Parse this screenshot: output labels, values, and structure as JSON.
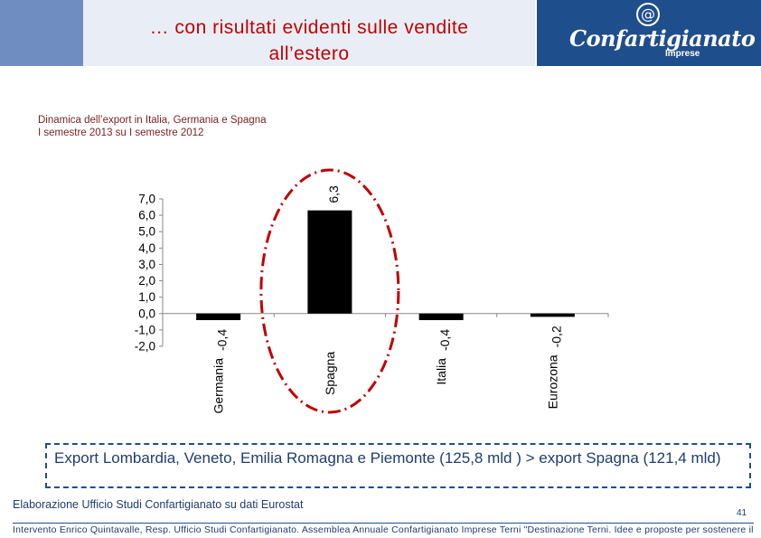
{
  "header": {
    "title_line1": "… con risultati evidenti sulle vendite",
    "title_line2": "all’estero"
  },
  "logo": {
    "at_symbol": "@",
    "name": "Confartigianato",
    "sub": "Imprese"
  },
  "subtitle": {
    "line1": "Dinamica dell’export in Italia, Germania e Spagna",
    "line2": "I semestre 2013 su I semestre 2012"
  },
  "chart_data": {
    "type": "bar",
    "categories": [
      "Germania",
      "Spagna",
      "Italia",
      "Eurozona"
    ],
    "values": [
      -0.4,
      6.3,
      -0.4,
      -0.2
    ],
    "value_labels": [
      "-0,4",
      "6,3",
      "-0,4",
      "-0,2"
    ],
    "ylim": [
      -2.0,
      7.0
    ],
    "yticks": [
      7.0,
      6.0,
      5.0,
      4.0,
      3.0,
      2.0,
      1.0,
      0.0,
      -1.0,
      -2.0
    ],
    "ytick_labels": [
      "7,0",
      "6,0",
      "5,0",
      "4,0",
      "3,0",
      "2,0",
      "1,0",
      "0,0",
      "-1,0",
      "-2,0"
    ],
    "bar_color": "#000000",
    "highlight": "Spagna",
    "highlight_color": "#c00000"
  },
  "callout": {
    "text": "Export  Lombardia, Veneto, Emilia Romagna e Piemonte (125,8 mld ) > export Spagna (121,4 mld)"
  },
  "source": "Elaborazione Ufficio Studi Confartigianato su dati Eurostat",
  "page_number": "41",
  "footer": "Intervento Enrico Quintavalle, Resp. Ufficio Studi Confartigianato. Assemblea Annuale Confartigianato Imprese Terni \"Destinazione Terni. Idee e proposte per sostenere il",
  "colors": {
    "title": "#c00000",
    "brand_blue": "#1f4e8c",
    "side_block": "#6f8dc0"
  }
}
